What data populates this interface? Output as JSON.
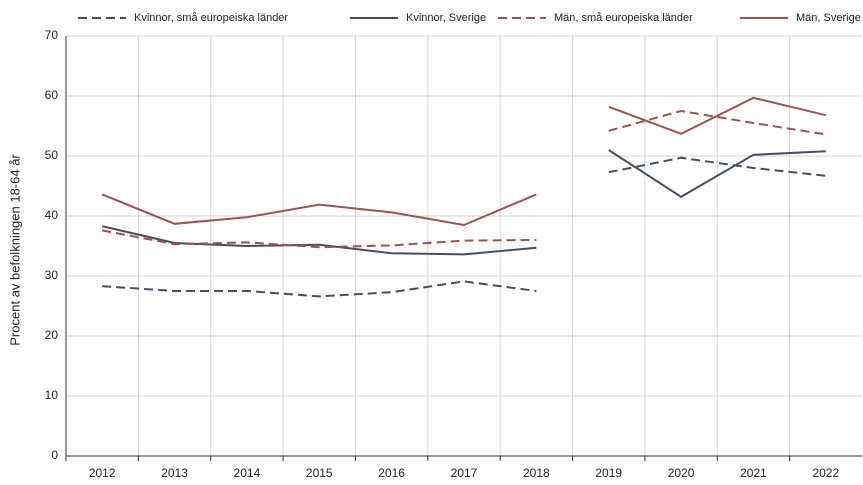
{
  "chart_data": {
    "type": "line",
    "y_label": "Procent av befolkningen 18-64 år",
    "categories": [
      "2012",
      "2013",
      "2014",
      "2015",
      "2016",
      "2017",
      "2018",
      "2019",
      "2020",
      "2021",
      "2022"
    ],
    "break_after": "2018",
    "series": [
      {
        "name": "Kvinnor, små europeiska länder",
        "color": "#454e63",
        "dash": true,
        "values": [
          28.3,
          27.5,
          27.5,
          26.6,
          27.3,
          29.1,
          27.5,
          47.3,
          49.7,
          48.0,
          46.7
        ]
      },
      {
        "name": "Kvinnor, Sverige",
        "color": "#454e63",
        "dash": false,
        "values": [
          38.3,
          35.5,
          35.0,
          35.2,
          33.8,
          33.6,
          34.7,
          51.0,
          43.2,
          50.2,
          50.8
        ]
      },
      {
        "name": "Män, små europeiska länder",
        "color": "#a0504f",
        "dash": true,
        "values": [
          37.6,
          35.3,
          35.6,
          34.8,
          35.1,
          35.9,
          36.0,
          54.2,
          57.5,
          55.5,
          53.6
        ]
      },
      {
        "name": "Män, Sverige",
        "color": "#a0504f",
        "dash": false,
        "values": [
          43.6,
          38.7,
          39.8,
          41.9,
          40.6,
          38.5,
          43.6,
          58.2,
          53.7,
          59.7,
          56.8
        ]
      }
    ],
    "ylim": [
      0,
      70
    ],
    "yticks": [
      0,
      10,
      20,
      30,
      40,
      50,
      60,
      70
    ],
    "grid": true
  }
}
